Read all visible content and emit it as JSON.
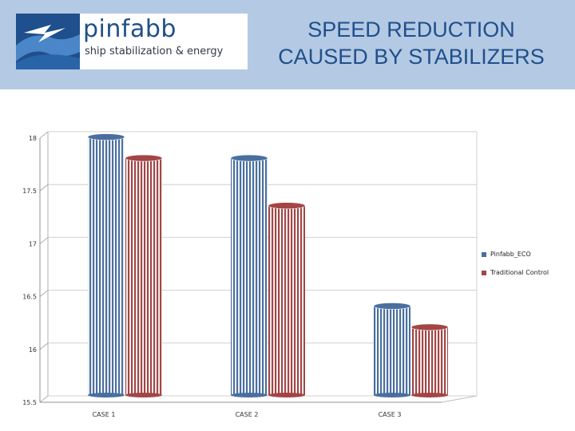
{
  "header": {
    "logo": {
      "name": "pinfabb",
      "tagline": "ship stabilization & energy"
    },
    "title_line1": "SPEED REDUCTION",
    "title_line2": "CAUSED BY STABILIZERS"
  },
  "colors": {
    "header_bg": "#b4c9e3",
    "title": "#1f4f8c",
    "series_1": "#4a6f9f",
    "series_2": "#a34545"
  },
  "chart_data": {
    "type": "bar",
    "categories": [
      "CASE 1",
      "CASE 2",
      "CASE 3"
    ],
    "series": [
      {
        "name": "Pinfabb_ECO",
        "values": [
          17.95,
          17.75,
          16.35
        ]
      },
      {
        "name": "Traditional Control",
        "values": [
          17.75,
          17.3,
          16.15
        ]
      }
    ],
    "ylim": [
      15.5,
      18
    ],
    "yticks": [
      "15.5",
      "16",
      "16.5",
      "17",
      "17.5",
      "18"
    ],
    "grid": true,
    "legend": "right",
    "style": "3d-cylinder"
  }
}
